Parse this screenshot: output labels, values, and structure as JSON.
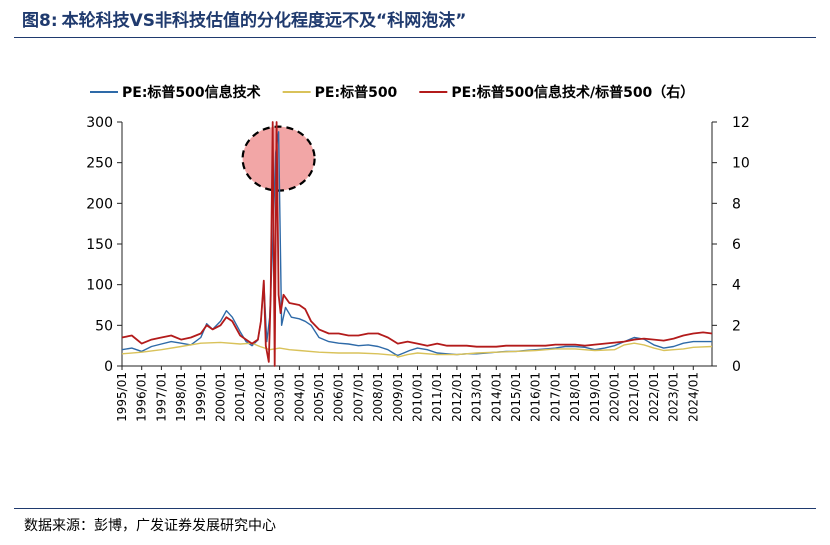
{
  "figure": {
    "label": "图8:",
    "title": "本轮科技VS非科技估值的分化程度远不及“科网泡沫”"
  },
  "source": "数据来源：彭博，广发证券发展研究中心",
  "colors": {
    "title": "#1f3a6e",
    "series_tech": "#2e6aa8",
    "series_sp500": "#d9c25a",
    "series_ratio": "#b31b1b",
    "highlight_fill": "#f2a6a6"
  },
  "chart_data": {
    "type": "line",
    "title": "",
    "legend_position": "top",
    "grid": false,
    "x_range": [
      1995.0,
      2024.95
    ],
    "x_tick_labels": [
      "1995/01",
      "1996/01",
      "1997/01",
      "1998/01",
      "1999/01",
      "2000/01",
      "2001/01",
      "2002/01",
      "2003/01",
      "2004/01",
      "2005/01",
      "2006/01",
      "2007/01",
      "2008/01",
      "2009/01",
      "2010/01",
      "2011/01",
      "2012/01",
      "2013/01",
      "2014/01",
      "2015/01",
      "2016/01",
      "2017/01",
      "2018/01",
      "2019/01",
      "2020/01",
      "2021/01",
      "2022/01",
      "2023/01",
      "2024/01"
    ],
    "y_left": {
      "range": [
        0,
        300
      ],
      "ticks": [
        "0",
        "50",
        "100",
        "150",
        "200",
        "250",
        "300"
      ]
    },
    "y_right": {
      "range": [
        0,
        12
      ],
      "ticks": [
        "0",
        "2",
        "4",
        "6",
        "8",
        "10",
        "12"
      ]
    },
    "annotation": "dashed circle highlighting the 2002 peak",
    "series": [
      {
        "name": "PE:标普500信息技术",
        "axis": "left",
        "x": [
          1995.0,
          1995.5,
          1996.0,
          1996.5,
          1997.0,
          1997.5,
          1998.0,
          1998.5,
          1999.0,
          1999.3,
          1999.6,
          2000.0,
          2000.3,
          2000.6,
          2001.0,
          2001.3,
          2001.6,
          2001.9,
          2002.05,
          2002.2,
          2002.35,
          2002.5,
          2002.65,
          2002.8,
          2002.95,
          2003.1,
          2003.3,
          2003.6,
          2004.0,
          2004.3,
          2004.6,
          2005.0,
          2005.5,
          2006.0,
          2006.5,
          2007.0,
          2007.5,
          2008.0,
          2008.5,
          2008.9,
          2009.0,
          2009.3,
          2009.6,
          2010.0,
          2010.5,
          2011.0,
          2011.5,
          2012.0,
          2012.5,
          2013.0,
          2013.5,
          2014.0,
          2014.5,
          2015.0,
          2015.5,
          2016.0,
          2016.5,
          2017.0,
          2017.5,
          2018.0,
          2018.5,
          2019.0,
          2019.5,
          2020.0,
          2020.5,
          2021.0,
          2021.5,
          2022.0,
          2022.5,
          2023.0,
          2023.5,
          2024.0,
          2024.5,
          2024.95
        ],
        "values": [
          20,
          22,
          18,
          24,
          27,
          30,
          28,
          26,
          35,
          52,
          45,
          55,
          68,
          60,
          42,
          30,
          25,
          32,
          55,
          103,
          30,
          60,
          150,
          262,
          288,
          50,
          72,
          60,
          58,
          55,
          50,
          35,
          30,
          28,
          27,
          25,
          26,
          24,
          20,
          14,
          13,
          16,
          19,
          22,
          20,
          16,
          15,
          14,
          15,
          15,
          16,
          17,
          18,
          18,
          19,
          20,
          21,
          22,
          24,
          24,
          23,
          20,
          22,
          25,
          30,
          35,
          33,
          26,
          22,
          24,
          28,
          30,
          30,
          30
        ]
      },
      {
        "name": "PE:标普500",
        "axis": "left",
        "x": [
          1995.0,
          1996.0,
          1997.0,
          1998.0,
          1999.0,
          2000.0,
          2001.0,
          2001.6,
          2002.0,
          2002.5,
          2003.0,
          2003.5,
          2004.0,
          2005.0,
          2006.0,
          2007.0,
          2008.0,
          2008.9,
          2009.0,
          2009.5,
          2010.0,
          2011.0,
          2012.0,
          2013.0,
          2014.0,
          2015.0,
          2016.0,
          2017.0,
          2018.0,
          2019.0,
          2020.0,
          2020.5,
          2021.0,
          2021.5,
          2022.0,
          2022.5,
          2023.0,
          2023.5,
          2024.0,
          2024.95
        ],
        "values": [
          15,
          17,
          20,
          24,
          28,
          29,
          27,
          28,
          24,
          20,
          22,
          20,
          19,
          17,
          16,
          16,
          15,
          13,
          11,
          14,
          16,
          14,
          14,
          16,
          17,
          18,
          19,
          21,
          21,
          19,
          20,
          26,
          28,
          26,
          22,
          19,
          20,
          21,
          23,
          24
        ]
      },
      {
        "name": "PE:标普500信息技术/标普500（右）",
        "axis": "right",
        "x": [
          1995.0,
          1995.5,
          1996.0,
          1996.5,
          1997.0,
          1997.5,
          1998.0,
          1998.5,
          1999.0,
          1999.3,
          1999.6,
          2000.0,
          2000.3,
          2000.6,
          2001.0,
          2001.3,
          2001.6,
          2001.9,
          2002.05,
          2002.2,
          2002.3,
          2002.45,
          2002.55,
          2002.65,
          2002.75,
          2002.85,
          2002.95,
          2003.05,
          2003.2,
          2003.5,
          2004.0,
          2004.3,
          2004.6,
          2005.0,
          2005.5,
          2006.0,
          2006.5,
          2007.0,
          2007.5,
          2008.0,
          2008.5,
          2009.0,
          2009.5,
          2010.0,
          2010.5,
          2011.0,
          2011.5,
          2012.0,
          2012.5,
          2013.0,
          2013.5,
          2014.0,
          2014.5,
          2015.0,
          2015.5,
          2016.0,
          2016.5,
          2017.0,
          2017.5,
          2018.0,
          2018.5,
          2019.0,
          2019.5,
          2020.0,
          2020.5,
          2021.0,
          2021.5,
          2022.0,
          2022.5,
          2023.0,
          2023.5,
          2024.0,
          2024.5,
          2024.95
        ],
        "values": [
          1.4,
          1.5,
          1.1,
          1.3,
          1.4,
          1.5,
          1.3,
          1.4,
          1.6,
          2.0,
          1.8,
          2.0,
          2.4,
          2.2,
          1.5,
          1.3,
          1.1,
          1.3,
          2.2,
          4.2,
          1.0,
          0.2,
          3.5,
          12.0,
          0.0,
          12.0,
          3.5,
          2.6,
          3.5,
          3.1,
          3.0,
          2.8,
          2.2,
          1.8,
          1.6,
          1.6,
          1.5,
          1.5,
          1.6,
          1.6,
          1.4,
          1.1,
          1.2,
          1.1,
          1.0,
          1.1,
          1.0,
          1.0,
          1.0,
          0.95,
          0.95,
          0.95,
          1.0,
          1.0,
          1.0,
          1.0,
          1.0,
          1.05,
          1.05,
          1.05,
          1.0,
          1.05,
          1.1,
          1.15,
          1.2,
          1.3,
          1.35,
          1.3,
          1.25,
          1.35,
          1.5,
          1.6,
          1.65,
          1.6
        ]
      }
    ]
  }
}
